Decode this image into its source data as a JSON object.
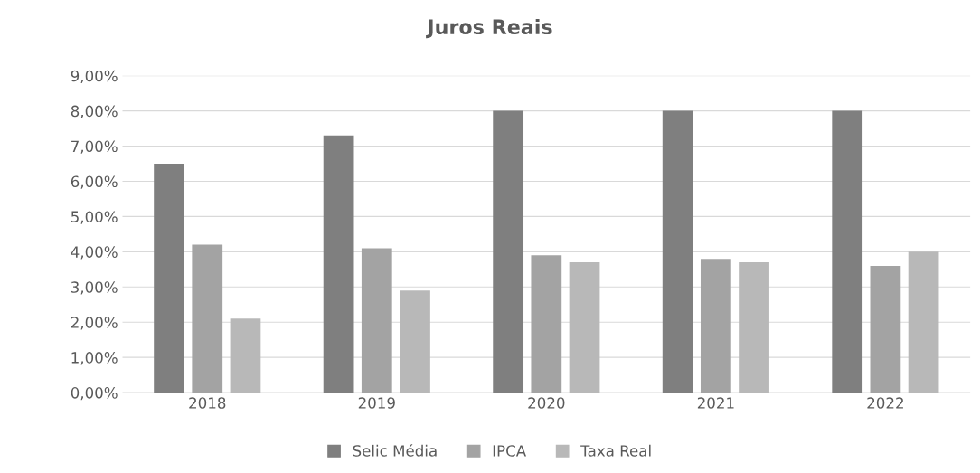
{
  "chart_data": {
    "type": "bar",
    "title": "Juros Reais",
    "categories": [
      "2018",
      "2019",
      "2020",
      "2021",
      "2022"
    ],
    "series": [
      {
        "name": "Selic Média",
        "color": "#7f7f7f",
        "values": [
          6.5,
          7.3,
          8.0,
          8.0,
          8.0
        ]
      },
      {
        "name": "IPCA",
        "color": "#a3a3a3",
        "values": [
          4.2,
          4.1,
          3.9,
          3.8,
          3.6
        ]
      },
      {
        "name": "Taxa Real",
        "color": "#b8b8b8",
        "values": [
          2.1,
          2.9,
          3.7,
          3.7,
          4.0
        ]
      }
    ],
    "ylim": [
      0,
      9
    ],
    "yticks": [
      {
        "value": 0,
        "label": "0,00%"
      },
      {
        "value": 1,
        "label": "1,00%"
      },
      {
        "value": 2,
        "label": "2,00%"
      },
      {
        "value": 3,
        "label": "3,00%"
      },
      {
        "value": 4,
        "label": "4,00%"
      },
      {
        "value": 5,
        "label": "5,00%"
      },
      {
        "value": 6,
        "label": "6,00%"
      },
      {
        "value": 7,
        "label": "7,00%"
      },
      {
        "value": 8,
        "label": "8,00%"
      },
      {
        "value": 9,
        "label": "9,00%"
      }
    ],
    "grid": "y",
    "legend": "bottom"
  }
}
